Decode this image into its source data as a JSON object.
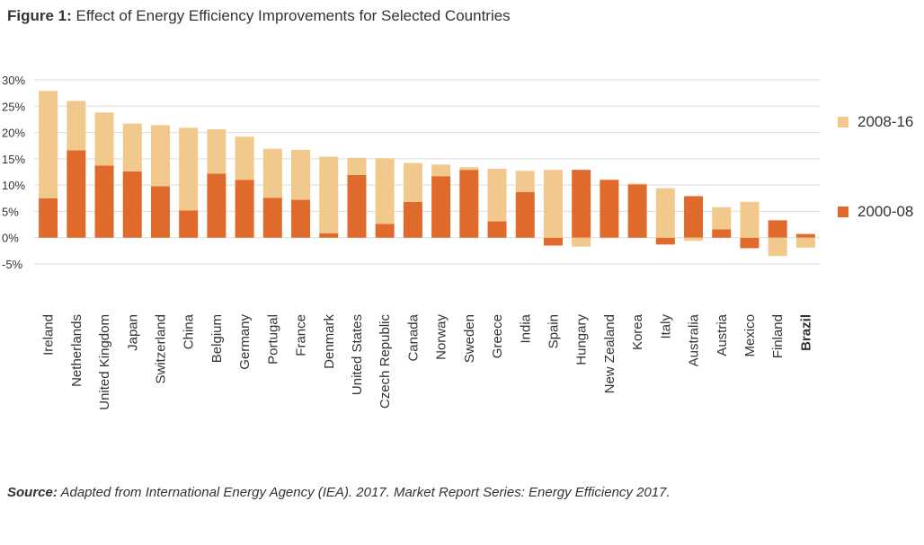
{
  "header": {
    "title_lead": "Figure 1:",
    "title_text": "Effect of Energy Efficiency Improvements for Selected Countries"
  },
  "footer": {
    "source_lead": "Source:",
    "source_text": "Adapted from International Energy Agency (IEA). 2017. Market Report Series: Energy Efficiency 2017."
  },
  "colors": {
    "s2000_08": "#e06a2c",
    "s2008_16": "#f2c98c",
    "grid": "#dddddd",
    "text": "#333333"
  },
  "chart_data": {
    "type": "bar",
    "stacked": true,
    "title": "",
    "xlabel": "",
    "ylabel": "",
    "ylim": [
      -5,
      30
    ],
    "yticks": [
      30,
      25,
      20,
      15,
      10,
      5,
      0,
      -5
    ],
    "ytick_labels": [
      "30%",
      "25%",
      "20%",
      "15%",
      "10%",
      "5%",
      "0%",
      "-5%"
    ],
    "grid": true,
    "legend_position": "right",
    "categories": [
      "Ireland",
      "Netherlands",
      "United Kingdom",
      "Japan",
      "Switzerland",
      "China",
      "Belgium",
      "Germany",
      "Portugal",
      "France",
      "Denmark",
      "United States",
      "Czech Republic",
      "Canada",
      "Norway",
      "Sweden",
      "Greece",
      "India",
      "Spain",
      "Hungary",
      "New Zealand",
      "Korea",
      "Italy",
      "Australia",
      "Austria",
      "Mexico",
      "Finland",
      "Brazil"
    ],
    "bold_categories": [
      "Brazil"
    ],
    "series": [
      {
        "name": "2000-08",
        "color": "#e06a2c",
        "values": [
          7.5,
          16.6,
          13.7,
          12.6,
          9.8,
          5.2,
          12.2,
          11.0,
          7.6,
          7.2,
          0.8,
          11.9,
          2.6,
          6.8,
          11.7,
          12.9,
          3.1,
          8.7,
          -1.5,
          12.9,
          11.0,
          10.1,
          -1.3,
          7.9,
          1.6,
          -2.0,
          3.3,
          0.7
        ]
      },
      {
        "name": "2008-16",
        "color": "#f2c98c",
        "values": [
          20.4,
          9.4,
          10.1,
          9.1,
          11.6,
          15.7,
          8.4,
          8.2,
          9.3,
          9.5,
          14.6,
          3.3,
          12.5,
          7.4,
          2.2,
          0.5,
          10.0,
          4.0,
          12.9,
          -1.7,
          -0.1,
          0.2,
          9.4,
          -0.6,
          4.2,
          6.8,
          -3.5,
          -1.9
        ]
      }
    ]
  }
}
